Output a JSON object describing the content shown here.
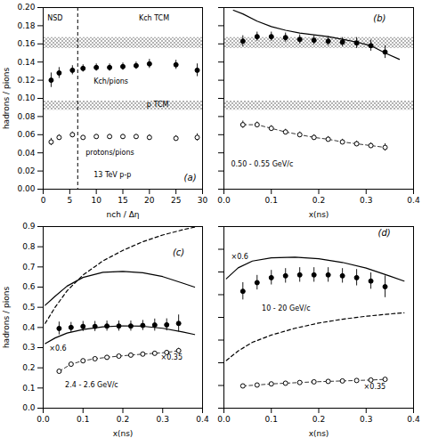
{
  "chart_data": [
    {
      "type": "scatter",
      "panel_label": {
        "text": "(a)",
        "x": 26.5,
        "y": 0.012
      },
      "xlabel": "nch / Δη",
      "ylabel": "hadrons / pions",
      "xlim": [
        0,
        30
      ],
      "ylim": [
        0,
        0.2
      ],
      "xticks": [
        0,
        5,
        10,
        15,
        20,
        25,
        30
      ],
      "yticks": [
        {
          "value": 0,
          "label": "0.00"
        },
        0.02,
        0.04,
        0.06,
        0.08,
        {
          "value": 0.1,
          "label": "0.10"
        },
        0.12,
        0.14,
        0.16,
        0.18,
        {
          "value": 0.2,
          "label": "0.20"
        }
      ],
      "bands": [
        [
          0.155,
          0.167
        ],
        [
          0.087,
          0.097
        ]
      ],
      "vlines": [
        6.5
      ],
      "series": [
        {
          "type": "scatter",
          "marker": "filled",
          "line_style": "none",
          "x": [
            1.5,
            3.0,
            5.5,
            7.5,
            10.0,
            12.5,
            15.0,
            17.5,
            20.0,
            25.0,
            29.0
          ],
          "values": [
            0.12,
            0.128,
            0.131,
            0.133,
            0.134,
            0.134,
            0.135,
            0.136,
            0.138,
            0.137,
            0.131
          ],
          "errors": [
            0.008,
            0.006,
            0.005,
            0.004,
            0.004,
            0.004,
            0.004,
            0.004,
            0.005,
            0.005,
            0.007
          ]
        },
        {
          "type": "scatter",
          "marker": "open",
          "line_style": "none",
          "x": [
            1.5,
            3.0,
            5.5,
            7.5,
            10.0,
            12.5,
            15.0,
            17.5,
            20.0,
            25.0,
            29.0
          ],
          "values": [
            0.052,
            0.057,
            0.06,
            0.057,
            0.058,
            0.058,
            0.058,
            0.058,
            0.057,
            0.056,
            0.057
          ],
          "errors": [
            0.004,
            0.003,
            0.003,
            0.002,
            0.002,
            0.002,
            0.002,
            0.002,
            0.003,
            0.003,
            0.004
          ]
        }
      ],
      "annotations": [
        {
          "text": "NSD",
          "x": 0.8,
          "y": 0.188
        },
        {
          "text": "Kch TCM",
          "x": 18,
          "y": 0.188
        },
        {
          "text": "Kch/pions",
          "x": 9.5,
          "y": 0.119
        },
        {
          "text": "p TCM",
          "x": 19.5,
          "y": 0.093
        },
        {
          "text": "protons/pions",
          "x": 8.0,
          "y": 0.04
        },
        {
          "text": "13 TeV p-p",
          "x": 9.5,
          "y": 0.016
        }
      ]
    },
    {
      "type": "scatter",
      "panel_label": {
        "text": "(b)",
        "x": 0.315,
        "y": 0.188
      },
      "xlabel": "x(ns)",
      "xlim": [
        0,
        0.4
      ],
      "ylim": [
        0,
        0.2
      ],
      "xticks": [
        {
          "value": 0,
          "label": "0.0"
        },
        0.1,
        0.2,
        0.3,
        0.4
      ],
      "yticks": [
        0,
        0.02,
        0.04,
        0.06,
        0.08,
        0.1,
        0.12,
        0.14,
        0.16,
        0.18,
        0.2
      ],
      "tick_labels": "x",
      "bands": [
        [
          0.155,
          0.167
        ],
        [
          0.087,
          0.097
        ]
      ],
      "series": [
        {
          "type": "line",
          "line_style": "solid",
          "x": [
            0.02,
            0.04,
            0.07,
            0.1,
            0.13,
            0.16,
            0.19,
            0.22,
            0.25,
            0.28,
            0.31,
            0.34,
            0.37
          ],
          "values": [
            0.197,
            0.193,
            0.185,
            0.179,
            0.175,
            0.172,
            0.17,
            0.168,
            0.165,
            0.162,
            0.158,
            0.15,
            0.143
          ]
        },
        {
          "type": "scatter",
          "marker": "filled",
          "line_style": "none",
          "x": [
            0.04,
            0.07,
            0.1,
            0.13,
            0.16,
            0.19,
            0.22,
            0.25,
            0.28,
            0.31,
            0.34
          ],
          "values": [
            0.163,
            0.168,
            0.168,
            0.167,
            0.165,
            0.164,
            0.163,
            0.162,
            0.161,
            0.158,
            0.151
          ],
          "errors": [
            0.006,
            0.005,
            0.005,
            0.005,
            0.005,
            0.005,
            0.005,
            0.005,
            0.006,
            0.006,
            0.007
          ]
        },
        {
          "type": "line",
          "marker": "open",
          "line_style": "dashed",
          "x": [
            0.04,
            0.07,
            0.1,
            0.13,
            0.16,
            0.19,
            0.22,
            0.25,
            0.28,
            0.31,
            0.34
          ],
          "values": [
            0.071,
            0.071,
            0.067,
            0.063,
            0.06,
            0.057,
            0.055,
            0.052,
            0.05,
            0.048,
            0.046
          ],
          "errors": [
            0.004,
            0.003,
            0.003,
            0.003,
            0.003,
            0.003,
            0.003,
            0.003,
            0.003,
            0.003,
            0.004
          ]
        }
      ],
      "annotations": [
        {
          "text": "0.50 - 0.55 GeV/c",
          "x": 0.015,
          "y": 0.028
        }
      ]
    },
    {
      "type": "scatter",
      "panel_label": {
        "text": "(c)",
        "x": 0.325,
        "y": 0.77
      },
      "xlabel": "x(ns)",
      "ylabel": "hadrons / pions",
      "xlim": [
        0,
        0.4
      ],
      "ylim": [
        0,
        0.9
      ],
      "xticks": [
        {
          "value": 0,
          "label": "0.0"
        },
        0.1,
        0.2,
        0.3,
        0.4
      ],
      "yticks": [
        {
          "value": 0,
          "label": "0.0"
        },
        0.1,
        0.2,
        0.3,
        0.4,
        0.5,
        0.6,
        0.7,
        0.8,
        0.9
      ],
      "series": [
        {
          "type": "line",
          "line_style": "solid",
          "x": [
            0.005,
            0.03,
            0.06,
            0.1,
            0.15,
            0.2,
            0.25,
            0.3,
            0.35,
            0.38
          ],
          "values": [
            0.51,
            0.555,
            0.605,
            0.648,
            0.673,
            0.678,
            0.671,
            0.652,
            0.62,
            0.6
          ]
        },
        {
          "type": "line",
          "line_style": "solid",
          "x": [
            0.005,
            0.03,
            0.06,
            0.1,
            0.15,
            0.2,
            0.25,
            0.3,
            0.35,
            0.38
          ],
          "values": [
            0.32,
            0.348,
            0.372,
            0.39,
            0.403,
            0.408,
            0.406,
            0.396,
            0.378,
            0.365
          ]
        },
        {
          "type": "line",
          "line_style": "dashed",
          "x": [
            0.005,
            0.03,
            0.06,
            0.1,
            0.15,
            0.2,
            0.25,
            0.3,
            0.35,
            0.38
          ],
          "values": [
            0.42,
            0.5,
            0.582,
            0.66,
            0.73,
            0.782,
            0.825,
            0.858,
            0.884,
            0.897
          ]
        },
        {
          "type": "scatter",
          "marker": "filled",
          "line_style": "none",
          "x": [
            0.04,
            0.07,
            0.1,
            0.13,
            0.16,
            0.19,
            0.22,
            0.25,
            0.28,
            0.31,
            0.34
          ],
          "values": [
            0.395,
            0.4,
            0.405,
            0.405,
            0.407,
            0.407,
            0.407,
            0.41,
            0.412,
            0.413,
            0.42
          ],
          "errors": [
            0.032,
            0.025,
            0.025,
            0.025,
            0.025,
            0.025,
            0.025,
            0.025,
            0.03,
            0.03,
            0.042
          ]
        },
        {
          "type": "line",
          "marker": "open",
          "line_style": "dashed",
          "x": [
            0.04,
            0.07,
            0.1,
            0.13,
            0.16,
            0.19,
            0.22,
            0.25,
            0.28,
            0.31,
            0.34
          ],
          "values": [
            0.183,
            0.218,
            0.235,
            0.245,
            0.252,
            0.258,
            0.263,
            0.268,
            0.272,
            0.276,
            0.285
          ],
          "errors": [
            0.01,
            0.008,
            0.008,
            0.008,
            0.008,
            0.008,
            0.008,
            0.008,
            0.009,
            0.009,
            0.012
          ]
        }
      ],
      "annotations": [
        {
          "text": "×0.6",
          "x": 0.015,
          "y": 0.296
        },
        {
          "text": "×0.35",
          "x": 0.295,
          "y": 0.252
        },
        {
          "text": "2.4 - 2.6 GeV/c",
          "x": 0.055,
          "y": 0.115
        }
      ]
    },
    {
      "type": "scatter",
      "panel_label": {
        "text": "(d)",
        "x": 0.325,
        "y": 0.77
      },
      "xlabel": "x(ns)",
      "xlim": [
        0,
        0.4
      ],
      "ylim": [
        0,
        0.8
      ],
      "xticks": [
        {
          "value": 0,
          "label": "0.0"
        },
        0.1,
        0.2,
        0.3,
        0.4
      ],
      "yticks": [
        0,
        0.1,
        0.2,
        0.3,
        0.4,
        0.5,
        0.6,
        0.7,
        0.8
      ],
      "tick_labels": "x",
      "series": [
        {
          "type": "line",
          "line_style": "solid",
          "x": [
            0.005,
            0.03,
            0.06,
            0.1,
            0.15,
            0.2,
            0.25,
            0.3,
            0.35,
            0.38
          ],
          "values": [
            0.57,
            0.618,
            0.648,
            0.662,
            0.665,
            0.658,
            0.642,
            0.617,
            0.582,
            0.56
          ]
        },
        {
          "type": "line",
          "line_style": "dashed",
          "x": [
            0.005,
            0.03,
            0.06,
            0.1,
            0.15,
            0.2,
            0.25,
            0.3,
            0.35,
            0.38
          ],
          "values": [
            0.21,
            0.252,
            0.29,
            0.322,
            0.352,
            0.375,
            0.392,
            0.405,
            0.415,
            0.42
          ]
        },
        {
          "type": "scatter",
          "marker": "filled",
          "line_style": "none",
          "x": [
            0.04,
            0.07,
            0.1,
            0.13,
            0.16,
            0.19,
            0.22,
            0.25,
            0.28,
            0.31,
            0.34
          ],
          "values": [
            0.515,
            0.553,
            0.575,
            0.583,
            0.587,
            0.587,
            0.587,
            0.583,
            0.575,
            0.56,
            0.535
          ],
          "errors": [
            0.038,
            0.032,
            0.032,
            0.032,
            0.032,
            0.032,
            0.032,
            0.032,
            0.036,
            0.036,
            0.048
          ]
        },
        {
          "type": "line",
          "marker": "open",
          "line_style": "dashed",
          "x": [
            0.04,
            0.07,
            0.1,
            0.13,
            0.16,
            0.19,
            0.22,
            0.25,
            0.28,
            0.31,
            0.34
          ],
          "values": [
            0.098,
            0.102,
            0.107,
            0.11,
            0.113,
            0.116,
            0.118,
            0.12,
            0.122,
            0.124,
            0.127
          ],
          "errors": [
            0.006,
            0.005,
            0.005,
            0.005,
            0.005,
            0.005,
            0.005,
            0.005,
            0.006,
            0.006,
            0.008
          ]
        }
      ],
      "annotations": [
        {
          "text": "×0.6",
          "x": 0.015,
          "y": 0.668
        },
        {
          "text": "×0.35",
          "x": 0.295,
          "y": 0.095
        },
        {
          "text": "10 - 20 GeV/c",
          "x": 0.08,
          "y": 0.44
        }
      ]
    }
  ]
}
